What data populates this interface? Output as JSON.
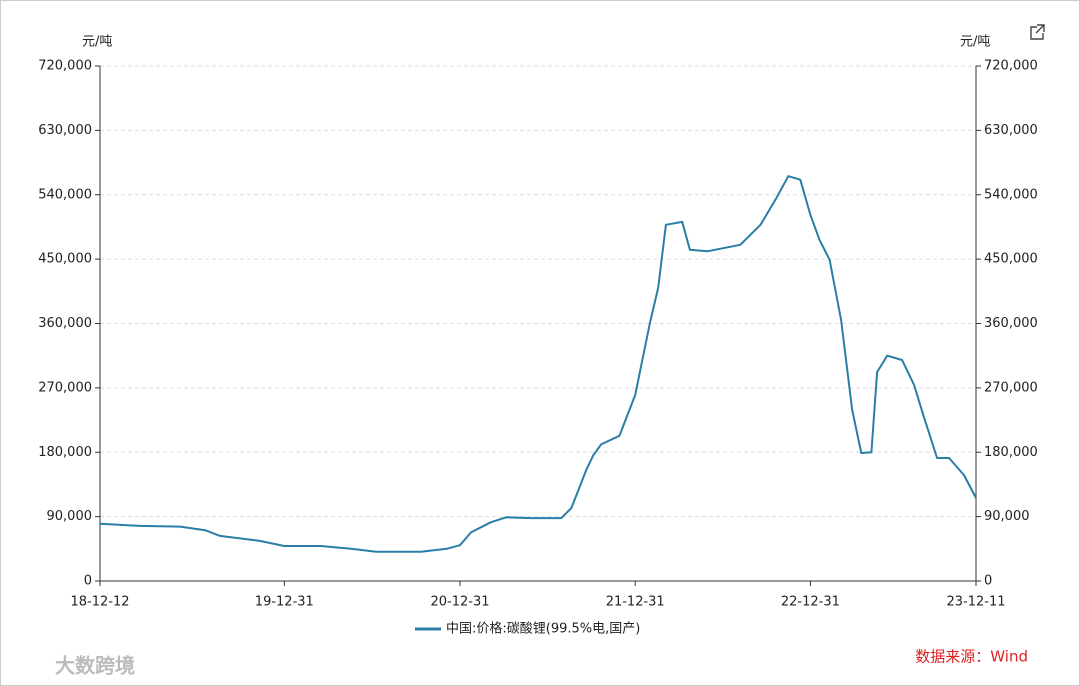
{
  "chart_data": {
    "type": "line",
    "y_label": "元/吨",
    "y2_label": "元/吨",
    "source": "数据来源：Wind",
    "watermark": "大数跨境",
    "x": [
      "18-12-12",
      "19-03-05",
      "19-05-28",
      "19-07-19",
      "19-08-19",
      "19-11-10",
      "19-12-31",
      "20-03-16",
      "20-05-18",
      "20-07-09",
      "20-10-11",
      "20-12-03",
      "20-12-31",
      "21-01-23",
      "21-03-05",
      "21-04-06",
      "21-05-28",
      "21-07-30",
      "21-08-20",
      "21-09-20",
      "21-10-05",
      "21-10-21",
      "21-11-28",
      "21-12-31",
      "22-01-31",
      "22-02-17",
      "22-03-05",
      "22-04-08",
      "22-04-24",
      "22-05-30",
      "22-08-07",
      "22-09-18",
      "22-10-19",
      "22-11-15",
      "22-12-10",
      "22-12-31",
      "23-01-19",
      "23-02-09",
      "23-03-05",
      "23-03-28",
      "23-04-16",
      "23-05-07",
      "23-05-19",
      "23-06-09",
      "23-07-10",
      "23-08-04",
      "23-08-25",
      "23-09-21",
      "23-10-16",
      "23-11-16",
      "23-12-11"
    ],
    "series": [
      {
        "name": "中国:价格:碳酸锂(99.5%电,国产)",
        "color": "#2a7ea6",
        "values": [
          80000,
          77000,
          76000,
          71000,
          63000,
          56000,
          49000,
          49000,
          45000,
          41000,
          41000,
          45000,
          50000,
          68000,
          82000,
          89000,
          88000,
          88000,
          102000,
          155000,
          176000,
          191000,
          203000,
          260000,
          362000,
          410000,
          498000,
          502000,
          463000,
          461000,
          470000,
          498000,
          533000,
          566000,
          561000,
          512000,
          477000,
          449000,
          365000,
          239000,
          179000,
          180000,
          292000,
          315000,
          309000,
          274000,
          228000,
          172000,
          172000,
          148000,
          116000
        ]
      }
    ],
    "xlim": [
      "18-12-12",
      "23-12-11"
    ],
    "xticks": [
      "18-12-12",
      "19-12-31",
      "20-12-31",
      "21-12-31",
      "22-12-31",
      "23-12-11"
    ],
    "ylim": [
      0,
      720000
    ],
    "yticks": [
      0,
      {
        "value": 90000,
        "label": "90,000"
      },
      {
        "value": 180000,
        "label": "180,000"
      },
      {
        "value": 270000,
        "label": "270,000"
      },
      {
        "value": 360000,
        "label": "360,000"
      },
      {
        "value": 450000,
        "label": "450,000"
      },
      {
        "value": 540000,
        "label": "540,000"
      },
      {
        "value": 630000,
        "label": "630,000"
      },
      {
        "value": 720000,
        "label": "720,000"
      }
    ],
    "y2lim": [
      0,
      720000
    ],
    "y2ticks": [
      0,
      {
        "value": 90000,
        "label": "90,000"
      },
      {
        "value": 180000,
        "label": "180,000"
      },
      {
        "value": 270000,
        "label": "270,000"
      },
      {
        "value": 360000,
        "label": "360,000"
      },
      {
        "value": 450000,
        "label": "450,000"
      },
      {
        "value": 540000,
        "label": "540,000"
      },
      {
        "value": 630000,
        "label": "630,000"
      },
      {
        "value": 720000,
        "label": "720,000"
      }
    ],
    "grid": true
  }
}
